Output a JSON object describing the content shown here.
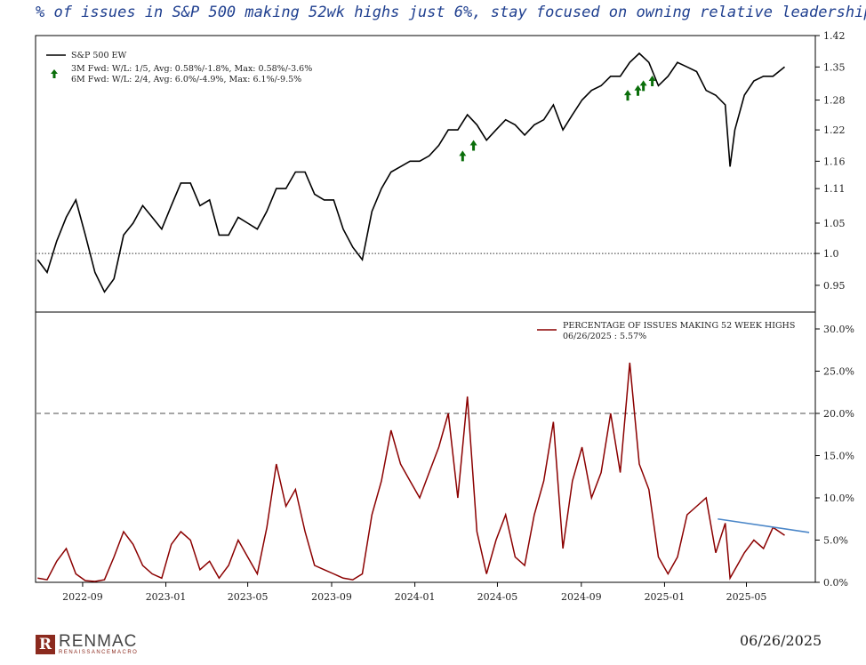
{
  "headline": "% of issues in S&P 500 making 52wk highs just 6%, stay focused on owning relative leadership",
  "footer": {
    "brand": "RENMAC",
    "brand_sub": "RENAISSANCEMACRO",
    "date": "06/26/2025"
  },
  "colors": {
    "top_line": "#000000",
    "bottom_line": "#8b0000",
    "arrow": "#0a6e0a",
    "trend": "#4a86c8",
    "headline": "#1f3f8f"
  },
  "chart_data": [
    {
      "type": "line",
      "title": "",
      "series": [
        {
          "name": "S&P 500 EW",
          "x": [
            "2022-06-27",
            "2022-07-11",
            "2022-07-25",
            "2022-08-08",
            "2022-08-22",
            "2022-09-05",
            "2022-09-19",
            "2022-10-03",
            "2022-10-17",
            "2022-10-31",
            "2022-11-14",
            "2022-11-28",
            "2022-12-12",
            "2022-12-26",
            "2023-01-09",
            "2023-01-23",
            "2023-02-06",
            "2023-02-20",
            "2023-03-06",
            "2023-03-20",
            "2023-04-03",
            "2023-04-17",
            "2023-05-01",
            "2023-05-15",
            "2023-05-29",
            "2023-06-12",
            "2023-06-26",
            "2023-07-10",
            "2023-07-24",
            "2023-08-07",
            "2023-08-21",
            "2023-09-04",
            "2023-09-18",
            "2023-10-02",
            "2023-10-16",
            "2023-10-30",
            "2023-11-13",
            "2023-11-27",
            "2023-12-11",
            "2023-12-25",
            "2024-01-08",
            "2024-01-22",
            "2024-02-05",
            "2024-02-19",
            "2024-03-04",
            "2024-03-18",
            "2024-04-01",
            "2024-04-15",
            "2024-04-29",
            "2024-05-13",
            "2024-05-27",
            "2024-06-10",
            "2024-06-24",
            "2024-07-08",
            "2024-07-22",
            "2024-08-05",
            "2024-08-19",
            "2024-09-02",
            "2024-09-16",
            "2024-09-30",
            "2024-10-14",
            "2024-10-28",
            "2024-11-11",
            "2024-11-25",
            "2024-12-09",
            "2024-12-23",
            "2025-01-06",
            "2025-01-20",
            "2025-02-03",
            "2025-02-17",
            "2025-03-03",
            "2025-03-17",
            "2025-03-31",
            "2025-04-07",
            "2025-04-14",
            "2025-04-28",
            "2025-05-12",
            "2025-05-26",
            "2025-06-09",
            "2025-06-26"
          ],
          "values": [
            0.99,
            0.97,
            1.02,
            1.06,
            1.09,
            1.03,
            0.97,
            0.94,
            0.96,
            1.03,
            1.05,
            1.08,
            1.06,
            1.04,
            1.08,
            1.12,
            1.12,
            1.08,
            1.09,
            1.03,
            1.03,
            1.06,
            1.05,
            1.04,
            1.07,
            1.11,
            1.11,
            1.14,
            1.14,
            1.1,
            1.09,
            1.09,
            1.04,
            1.01,
            0.99,
            1.07,
            1.11,
            1.14,
            1.15,
            1.16,
            1.16,
            1.17,
            1.19,
            1.22,
            1.22,
            1.25,
            1.23,
            1.2,
            1.22,
            1.24,
            1.23,
            1.21,
            1.23,
            1.24,
            1.27,
            1.22,
            1.25,
            1.28,
            1.3,
            1.31,
            1.33,
            1.33,
            1.36,
            1.38,
            1.36,
            1.31,
            1.33,
            1.36,
            1.35,
            1.34,
            1.3,
            1.29,
            1.27,
            1.15,
            1.22,
            1.29,
            1.32,
            1.33,
            1.33,
            1.35
          ]
        }
      ],
      "arrows": [
        {
          "label": "3M Fwd",
          "x": "2024-03-11",
          "y": 1.17
        },
        {
          "label": "3M Fwd",
          "x": "2024-03-27",
          "y": 1.19
        },
        {
          "label": "3M Fwd",
          "x": "2024-11-08",
          "y": 1.29
        },
        {
          "label": "3M Fwd",
          "x": "2024-11-23",
          "y": 1.3
        },
        {
          "label": "3M Fwd",
          "x": "2024-12-01",
          "y": 1.31
        },
        {
          "label": "3M Fwd",
          "x": "2024-12-14",
          "y": 1.32
        }
      ],
      "legend": [
        "S&P 500 EW",
        "3M Fwd: W/L: 1/5, Avg: 0.58%/-1.8%, Max: 0.58%/-3.6%",
        "6M Fwd: W/L: 2/4, Avg: 6.0%/-4.9%, Max: 6.1%/-9.5%"
      ],
      "reference_line": {
        "y": 1.0,
        "style": "dotted"
      },
      "yticks": [
        "0.95",
        "1.0",
        "1.05",
        "1.11",
        "1.16",
        "1.22",
        "1.28",
        "1.35",
        "1.42"
      ],
      "ylim": [
        0.91,
        1.42
      ],
      "log_scale": true,
      "grid": false,
      "legend_position": "top-left"
    },
    {
      "type": "line",
      "title": "",
      "series": [
        {
          "name": "PERCENTAGE OF ISSUES MAKING 52 WEEK HIGHS",
          "x": [
            "2022-06-27",
            "2022-07-11",
            "2022-07-25",
            "2022-08-08",
            "2022-08-22",
            "2022-09-05",
            "2022-09-19",
            "2022-10-03",
            "2022-10-17",
            "2022-10-31",
            "2022-11-14",
            "2022-11-28",
            "2022-12-12",
            "2022-12-26",
            "2023-01-09",
            "2023-01-23",
            "2023-02-06",
            "2023-02-20",
            "2023-03-06",
            "2023-03-20",
            "2023-04-03",
            "2023-04-17",
            "2023-05-01",
            "2023-05-15",
            "2023-05-29",
            "2023-06-12",
            "2023-06-26",
            "2023-07-10",
            "2023-07-24",
            "2023-08-07",
            "2023-08-21",
            "2023-09-04",
            "2023-09-18",
            "2023-10-02",
            "2023-10-16",
            "2023-10-30",
            "2023-11-13",
            "2023-11-27",
            "2023-12-11",
            "2023-12-25",
            "2024-01-08",
            "2024-01-22",
            "2024-02-05",
            "2024-02-19",
            "2024-03-04",
            "2024-03-18",
            "2024-04-01",
            "2024-04-15",
            "2024-04-29",
            "2024-05-13",
            "2024-05-27",
            "2024-06-10",
            "2024-06-24",
            "2024-07-08",
            "2024-07-22",
            "2024-08-05",
            "2024-08-19",
            "2024-09-02",
            "2024-09-16",
            "2024-09-30",
            "2024-10-14",
            "2024-10-28",
            "2024-11-11",
            "2024-11-25",
            "2024-12-09",
            "2024-12-23",
            "2025-01-06",
            "2025-01-20",
            "2025-02-03",
            "2025-02-17",
            "2025-03-03",
            "2025-03-17",
            "2025-03-31",
            "2025-04-07",
            "2025-04-14",
            "2025-04-28",
            "2025-05-12",
            "2025-05-26",
            "2025-06-09",
            "2025-06-26"
          ],
          "values": [
            0.5,
            0.3,
            2.5,
            4.0,
            1.0,
            0.2,
            0.1,
            0.3,
            3.0,
            6.0,
            4.5,
            2.0,
            1.0,
            0.5,
            4.5,
            6.0,
            5.0,
            1.5,
            2.5,
            0.5,
            2.0,
            5.0,
            3.0,
            1.0,
            6.5,
            14.0,
            9.0,
            11.0,
            6.0,
            2.0,
            1.5,
            1.0,
            0.5,
            0.3,
            1.0,
            8.0,
            12.0,
            18.0,
            14.0,
            12.0,
            10.0,
            13.0,
            16.0,
            20.0,
            10.0,
            22.0,
            6.0,
            1.0,
            5.0,
            8.0,
            3.0,
            2.0,
            8.0,
            12.0,
            19.0,
            4.0,
            12.0,
            16.0,
            10.0,
            13.0,
            20.0,
            13.0,
            26.0,
            14.0,
            11.0,
            3.0,
            1.0,
            3.0,
            8.0,
            9.0,
            10.0,
            3.5,
            7.0,
            0.5,
            1.5,
            3.5,
            5.0,
            4.0,
            6.5,
            5.57
          ]
        }
      ],
      "legend": [
        "PERCENTAGE OF ISSUES MAKING 52 WEEK HIGHS",
        "06/26/2025 : 5.57%"
      ],
      "reference_line": {
        "y": 20.0,
        "style": "dashed"
      },
      "trend_line": {
        "x": [
          "2025-03-20",
          "2025-08-01"
        ],
        "y": [
          7.5,
          5.9
        ]
      },
      "categories": [
        "2022-09",
        "2023-01",
        "2023-05",
        "2023-09",
        "2024-01",
        "2024-05",
        "2024-09",
        "2025-01",
        "2025-05"
      ],
      "yticks": [
        "0.0%",
        "5.0%",
        "10.0%",
        "15.0%",
        "20.0%",
        "25.0%",
        "30.0%"
      ],
      "ylim": [
        0,
        32
      ],
      "grid": false,
      "legend_position": "top-right"
    }
  ]
}
